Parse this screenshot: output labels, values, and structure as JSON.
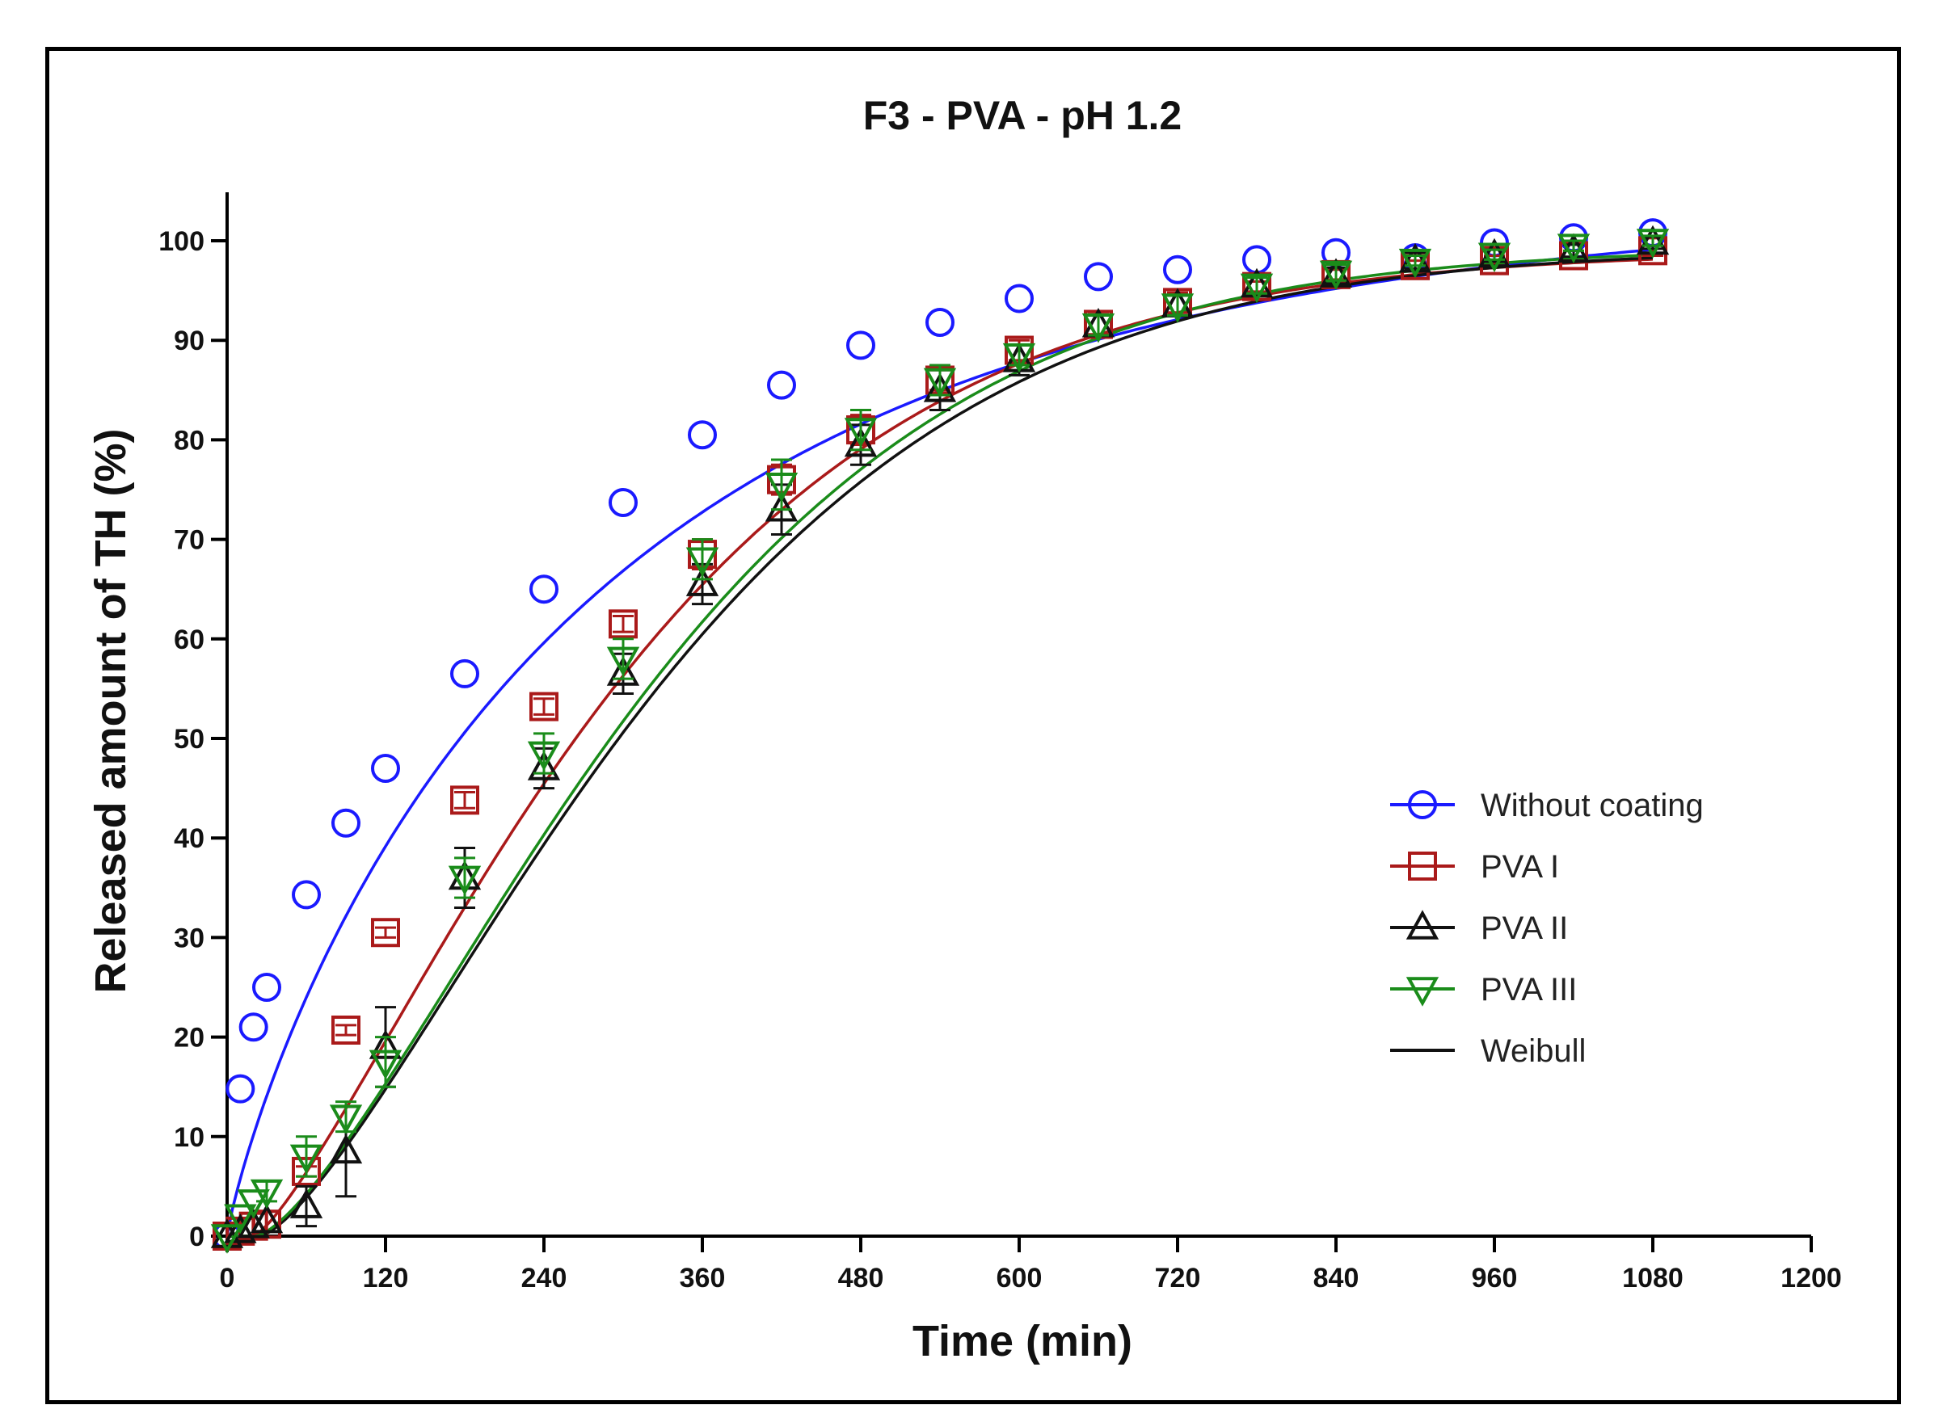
{
  "chart_data": {
    "type": "scatter",
    "title": "F3 - PVA - pH 1.2",
    "xlabel": "Time (min)",
    "ylabel": "Released amount of TH (%)",
    "xlim": [
      0,
      1200
    ],
    "ylim": [
      0,
      100
    ],
    "xticks": [
      0,
      120,
      240,
      360,
      480,
      600,
      720,
      840,
      960,
      1080,
      1200
    ],
    "yticks": [
      0,
      10,
      20,
      30,
      40,
      50,
      60,
      70,
      80,
      90,
      100
    ],
    "legend_position": "right-middle",
    "series": [
      {
        "name": "Without coating",
        "color": "#1a1aff",
        "marker": "circle",
        "x": [
          0,
          10,
          20,
          30,
          60,
          90,
          120,
          180,
          240,
          300,
          360,
          420,
          480,
          540,
          600,
          660,
          720,
          780,
          840,
          900,
          960,
          1020,
          1080
        ],
        "y": [
          0,
          14.8,
          21,
          25,
          34.3,
          41.5,
          47,
          56.5,
          65,
          73.7,
          80.5,
          85.5,
          89.5,
          91.8,
          94.2,
          96.4,
          97.1,
          98.1,
          98.8,
          98.3,
          99.8,
          100.3,
          100.8
        ],
        "err": [
          0,
          0,
          0,
          0,
          0,
          0,
          0,
          0,
          0,
          0,
          0,
          0,
          0,
          0,
          0,
          0,
          0,
          0,
          0,
          0,
          0,
          0,
          0
        ],
        "fit": {
          "model": "Weibull",
          "ymax": 104,
          "td": 290,
          "b": 0.85
        }
      },
      {
        "name": "PVA I",
        "color": "#aa1a1a",
        "marker": "square",
        "x": [
          0,
          10,
          20,
          30,
          60,
          90,
          120,
          180,
          240,
          300,
          360,
          420,
          480,
          540,
          600,
          660,
          720,
          780,
          840,
          900,
          960,
          1020,
          1080
        ],
        "y": [
          0,
          0.5,
          1,
          1.2,
          6.5,
          20.7,
          30.5,
          43.8,
          53.2,
          61.5,
          68.5,
          76,
          81,
          86,
          89,
          91.6,
          93.8,
          95.4,
          96.6,
          97.5,
          98,
          98.5,
          99
        ],
        "err": [
          0,
          0,
          0,
          0,
          0.5,
          0.5,
          0.5,
          0.8,
          0.8,
          0.8,
          1.5,
          1.5,
          1.5,
          1,
          1,
          1,
          1,
          0.5,
          0.5,
          0.5,
          0.5,
          0.5,
          0.5
        ],
        "fit": {
          "model": "Weibull",
          "ymax": 99,
          "td": 320,
          "b": 1.3,
          "ti": 20
        }
      },
      {
        "name": "PVA II",
        "color": "#111111",
        "marker": "triangle-up",
        "x": [
          0,
          10,
          20,
          30,
          60,
          90,
          120,
          180,
          240,
          300,
          360,
          420,
          480,
          540,
          600,
          660,
          720,
          780,
          840,
          900,
          960,
          1020,
          1080
        ],
        "y": [
          0,
          0.5,
          1,
          1.5,
          3,
          8.5,
          19,
          36,
          47,
          56.5,
          65.5,
          73,
          79.5,
          85,
          88,
          91.5,
          93.5,
          95.5,
          96.5,
          98,
          98.5,
          99,
          99.8
        ],
        "err": [
          0,
          0,
          0,
          0,
          2,
          4.5,
          4,
          3,
          2,
          2,
          2,
          2.5,
          2,
          2,
          1.5,
          1,
          1,
          0.8,
          0.8,
          0.8,
          0.6,
          0.6,
          0.6
        ],
        "fit": {
          "model": "Weibull",
          "ymax": 99.2,
          "td": 350,
          "b": 1.4,
          "ti": 25
        }
      },
      {
        "name": "PVA III",
        "color": "#1a8c1a",
        "marker": "triangle-down",
        "x": [
          0,
          10,
          20,
          30,
          60,
          90,
          120,
          180,
          240,
          300,
          360,
          420,
          480,
          540,
          600,
          660,
          720,
          780,
          840,
          900,
          960,
          1020,
          1080
        ],
        "y": [
          0,
          2,
          3.5,
          4.5,
          8,
          12,
          17.5,
          36,
          48.5,
          58,
          68,
          75.5,
          81,
          86,
          88.5,
          91.5,
          93.5,
          95.5,
          96.8,
          98,
          98.6,
          99.5,
          100
        ],
        "err": [
          0,
          0,
          0,
          1,
          2,
          1.5,
          2.5,
          2,
          2,
          2,
          2,
          2.5,
          2,
          1.5,
          1,
          1,
          1,
          0.8,
          0.8,
          0.5,
          0.5,
          0.5,
          0.5
        ],
        "fit": {
          "model": "Weibull",
          "ymax": 99.3,
          "td": 345,
          "b": 1.42,
          "ti": 22
        }
      }
    ],
    "legend": [
      {
        "label": "Without coating",
        "color": "#1a1aff",
        "marker": "circle"
      },
      {
        "label": "PVA I",
        "color": "#aa1a1a",
        "marker": "square"
      },
      {
        "label": "PVA II",
        "color": "#111111",
        "marker": "triangle-up"
      },
      {
        "label": "PVA III",
        "color": "#1a8c1a",
        "marker": "triangle-down"
      },
      {
        "label": "Weibull",
        "color": "#111111",
        "marker": "line"
      }
    ]
  }
}
